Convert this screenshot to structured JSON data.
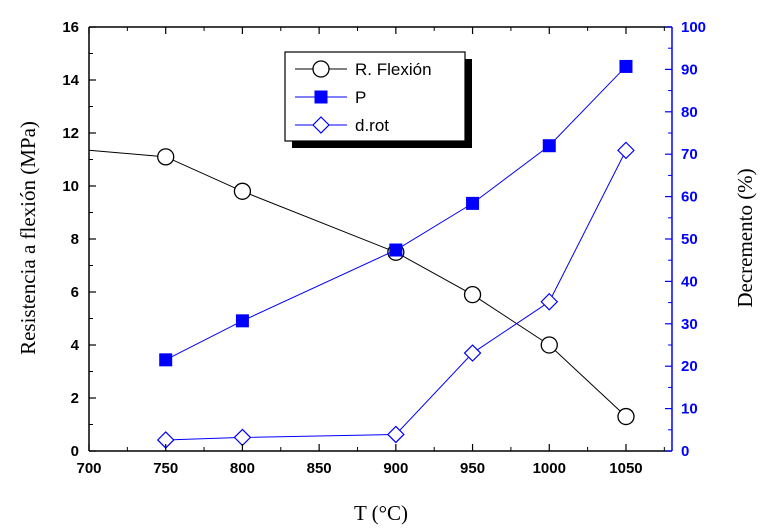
{
  "chart_data": {
    "type": "line",
    "xlabel": "T (°C)",
    "ylabel_left": "Resistencia a flexión (MPa)",
    "ylabel_right": "Decremento (%)",
    "xlim": [
      700,
      1080
    ],
    "ylim_left": [
      0,
      16
    ],
    "ylim_right": [
      0,
      100
    ],
    "x_ticks": [
      700,
      750,
      800,
      850,
      900,
      950,
      1000,
      1050
    ],
    "y_left_ticks": [
      0,
      2,
      4,
      6,
      8,
      10,
      12,
      14,
      16
    ],
    "y_right_ticks": [
      0,
      10,
      20,
      30,
      40,
      50,
      60,
      70,
      80,
      90,
      100
    ],
    "legend_position": "top-center",
    "series": [
      {
        "name": "R. Flexión",
        "axis": "left",
        "marker": "open-circle",
        "color": "#000000",
        "line_start": {
          "x": 700,
          "y": 11.35
        },
        "x": [
          750,
          800,
          900,
          950,
          1000,
          1050
        ],
        "values": [
          11.1,
          9.8,
          7.5,
          5.9,
          4.0,
          1.3
        ]
      },
      {
        "name": "P",
        "axis": "right",
        "marker": "filled-square",
        "color": "#0000ff",
        "x": [
          750,
          800,
          900,
          950,
          1000,
          1050
        ],
        "values": [
          21.5,
          30.7,
          47.4,
          58.4,
          72.0,
          90.7
        ]
      },
      {
        "name": "d.rot",
        "axis": "right",
        "marker": "open-diamond",
        "color": "#0000ff",
        "x": [
          750,
          800,
          900,
          950,
          1000,
          1050
        ],
        "values": [
          2.6,
          3.2,
          3.9,
          23.1,
          35.2,
          70.9
        ]
      }
    ]
  }
}
